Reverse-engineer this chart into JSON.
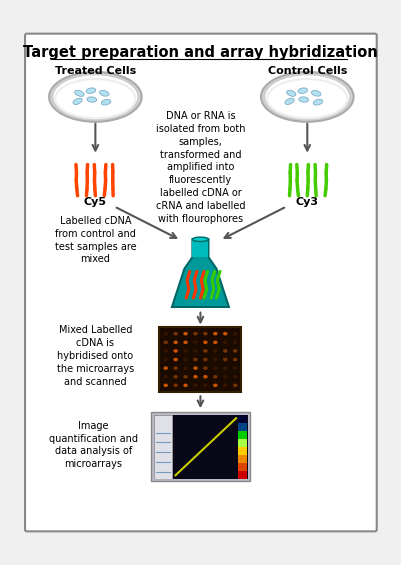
{
  "title": "Target preparation and array hybridization",
  "bg_color": "#f0f0f0",
  "border_color": "#888888",
  "title_fontsize": 10.5,
  "label_fontsize": 8,
  "text_color": "#000000",
  "treated_cells_label": "Treated Cells",
  "control_cells_label": "Control Cells",
  "cy5_label": "Cy5",
  "cy3_label": "Cy3",
  "middle_text": "DNA or RNA is\nisolated from both\nsamples,\ntransformed and\namplified into\nfluorescently\nlabelled cDNA or\ncRNA and labelled\nwith flourophores",
  "step1_text": "Labelled cDNA\nfrom control and\ntest samples are\nmixed",
  "step2_text": "Mixed Labelled\ncDNA is\nhybridised onto\nthe microarrays\nand scanned",
  "step3_text": "Image\nquantification and\ndata analysis of\nmicroarrays",
  "arrow_color": "#555555",
  "red_dna_color": "#ff4400",
  "green_dna_color": "#44cc00",
  "flask_teal": "#009999",
  "flask_dark": "#006666",
  "microarray_bg": "#1a0a00"
}
